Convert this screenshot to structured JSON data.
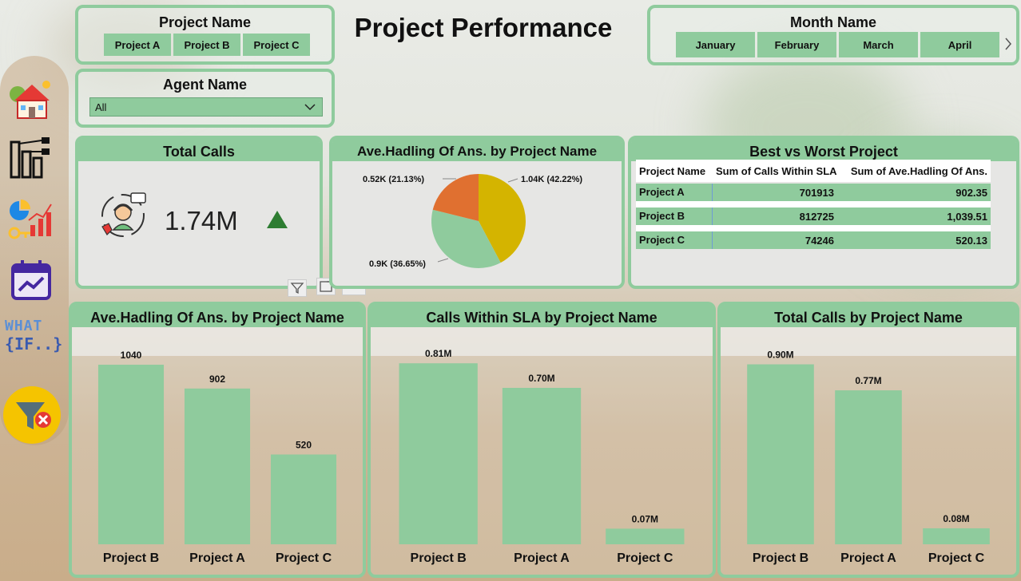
{
  "title": "Project Performance",
  "project_slicer": {
    "title": "Project Name",
    "options": [
      "Project A",
      "Project B",
      "Project C"
    ]
  },
  "agent_slicer": {
    "title": "Agent Name",
    "selected": "All"
  },
  "month_slicer": {
    "title": "Month Name",
    "options": [
      "January",
      "February",
      "March",
      "April"
    ]
  },
  "nav": {
    "what_if_line1": "WHAT",
    "what_if_line2": "{IF..}",
    "icons": [
      "home-icon",
      "org-chart-icon",
      "analytics-icon",
      "calendar-trend-icon",
      "what-if-icon",
      "clear-filter-icon"
    ]
  },
  "total_calls": {
    "title": "Total Calls",
    "value": "1.74M",
    "trend": "up"
  },
  "pie": {
    "title": "Ave.Hadling Of Ans. by Project Name",
    "slices": [
      {
        "label": "1.04K (42.22%)",
        "value": 42.22,
        "color": "#d4b400"
      },
      {
        "label": "0.9K (36.65%)",
        "value": 36.65,
        "color": "#8fcb9d"
      },
      {
        "label": "0.52K (21.13%)",
        "value": 21.13,
        "color": "#e07030"
      }
    ]
  },
  "best_worst": {
    "title": "Best vs Worst Project",
    "headers": [
      "Project Name",
      "Sum of Calls Within SLA",
      "Sum of Ave.Hadling Of Ans."
    ],
    "rows": [
      [
        "Project A",
        "701913",
        "902.35"
      ],
      [
        "Project B",
        "812725",
        "1,039.51"
      ],
      [
        "Project C",
        "74246",
        "520.13"
      ]
    ]
  },
  "chart_data": [
    {
      "type": "bar",
      "title": "Ave.Hadling Of Ans. by Project Name",
      "categories": [
        "Project B",
        "Project A",
        "Project C"
      ],
      "values": [
        1040,
        902,
        520
      ],
      "labels": [
        "1040",
        "902",
        "520"
      ],
      "ylim": [
        0,
        1100
      ]
    },
    {
      "type": "bar",
      "title": "Calls Within SLA by Project Name",
      "categories": [
        "Project B",
        "Project A",
        "Project C"
      ],
      "values": [
        0.81,
        0.7,
        0.07
      ],
      "labels": [
        "0.81M",
        "0.70M",
        "0.07M"
      ],
      "ylim": [
        0,
        0.85
      ]
    },
    {
      "type": "bar",
      "title": "Total Calls by Project Name",
      "categories": [
        "Project B",
        "Project A",
        "Project C"
      ],
      "values": [
        0.9,
        0.77,
        0.08
      ],
      "labels": [
        "0.90M",
        "0.77M",
        "0.08M"
      ],
      "ylim": [
        0,
        0.95
      ]
    }
  ],
  "colors": {
    "accent": "#8fcb9d",
    "trend_up": "#2e7d32"
  }
}
